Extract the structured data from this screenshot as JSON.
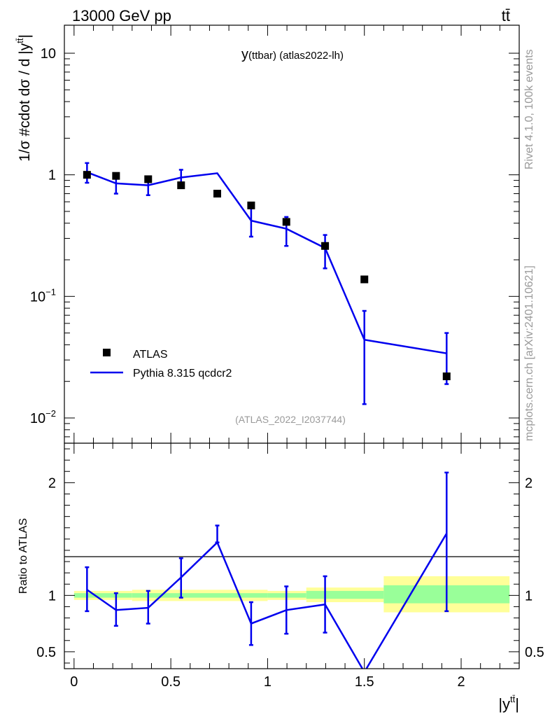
{
  "header": {
    "left": "13000 GeV pp",
    "right": "tt̄"
  },
  "side_text": {
    "rivet": "Rivet 4.1.0,  100k events",
    "mcplots": "mcplots.cern.ch [arXiv:2401.10621]"
  },
  "chart_data": [
    {
      "type": "scatter",
      "panel": "main",
      "title": "y(ttbar) (atlas2022-lh)",
      "title_main": "y",
      "title_rest": "(ttbar) (atlas2022-lh)",
      "ylabel": "1/σ #cdot dσ / d |y",
      "ylabel_sup": "tt̄",
      "ylabel_end": "|",
      "yscale": "log",
      "ylim": [
        0.0062,
        17
      ],
      "xlim": [
        -0.05,
        2.3
      ],
      "yticklabels": [
        {
          "value": 10,
          "base": "10",
          "sup": ""
        },
        {
          "value": 1,
          "base": "1",
          "sup": ""
        },
        {
          "value": 0.1,
          "base": "10",
          "sup": "−1"
        },
        {
          "value": 0.01,
          "base": "10",
          "sup": "−2"
        }
      ],
      "analysis_label": "(ATLAS_2022_I2037744)",
      "legend": [
        {
          "name": "ATLAS",
          "style": "marker"
        },
        {
          "name": "Pythia 8.315 qcdcr2",
          "style": "line"
        }
      ],
      "series": [
        {
          "name": "ATLAS",
          "x": [
            0.067,
            0.217,
            0.383,
            0.553,
            0.74,
            0.915,
            1.097,
            1.297,
            1.5,
            1.925
          ],
          "y": [
            1.0,
            0.98,
            0.92,
            0.82,
            0.7,
            0.56,
            0.41,
            0.26,
            0.138,
            0.022
          ]
        },
        {
          "name": "Pythia 8.315 qcdcr2",
          "color": "#0000ee",
          "x": [
            0.067,
            0.217,
            0.383,
            0.553,
            0.74,
            0.915,
            1.097,
            1.297,
            1.5,
            1.925
          ],
          "y": [
            1.05,
            0.85,
            0.82,
            0.95,
            1.03,
            0.42,
            0.36,
            0.25,
            0.044,
            0.034
          ],
          "err_low": [
            0.86,
            0.7,
            0.68,
            0.8,
            1.03,
            0.31,
            0.26,
            0.17,
            0.013,
            0.019
          ],
          "err_high": [
            1.25,
            1.0,
            0.96,
            1.1,
            1.03,
            0.55,
            0.45,
            0.32,
            0.076,
            0.05
          ]
        }
      ]
    },
    {
      "type": "line",
      "panel": "ratio",
      "ylabel": "Ratio to ATLAS",
      "ylim": [
        0.35,
        2.35
      ],
      "xlim": [
        -0.05,
        2.3
      ],
      "xlabel": "|y",
      "xlabel_sup": "tt̄",
      "xlabel_end": "|",
      "xticks": [
        0,
        0.5,
        1,
        1.5,
        2
      ],
      "xticklabels": [
        "0",
        "0.5",
        "1",
        "1.5",
        "2"
      ],
      "yticks": [
        0.5,
        1,
        2
      ],
      "yticklabels": [
        "0.5",
        "1",
        "2"
      ],
      "band_colors": {
        "inner": "#99ff99",
        "outer": "#ffff99"
      },
      "bands": [
        {
          "x0": 0.0,
          "x1": 0.3,
          "inner": [
            0.98,
            1.02
          ],
          "outer": [
            0.96,
            1.04
          ]
        },
        {
          "x0": 0.3,
          "x1": 1.0,
          "inner": [
            0.98,
            1.02
          ],
          "outer": [
            0.95,
            1.05
          ]
        },
        {
          "x0": 1.0,
          "x1": 1.2,
          "inner": [
            0.98,
            1.02
          ],
          "outer": [
            0.96,
            1.04
          ]
        },
        {
          "x0": 1.2,
          "x1": 1.6,
          "inner": [
            0.97,
            1.04
          ],
          "outer": [
            0.94,
            1.07
          ]
        },
        {
          "x0": 1.6,
          "x1": 2.25,
          "inner": [
            0.93,
            1.09
          ],
          "outer": [
            0.85,
            1.17
          ]
        }
      ],
      "series": [
        {
          "name": "Pythia 8.315 qcdcr2",
          "color": "#0000ee",
          "x": [
            0.067,
            0.217,
            0.383,
            0.553,
            0.74,
            0.915,
            1.097,
            1.297,
            1.5,
            1.925
          ],
          "y": [
            1.05,
            0.87,
            0.89,
            1.16,
            1.47,
            0.75,
            0.87,
            0.92,
            0.32,
            1.55
          ],
          "err_low": [
            0.86,
            0.73,
            0.75,
            0.98,
            1.47,
            0.56,
            0.66,
            0.67,
            0.32,
            0.86
          ],
          "err_high": [
            1.25,
            1.02,
            1.04,
            1.33,
            1.62,
            0.94,
            1.08,
            1.17,
            0.32,
            2.09
          ]
        }
      ]
    }
  ]
}
